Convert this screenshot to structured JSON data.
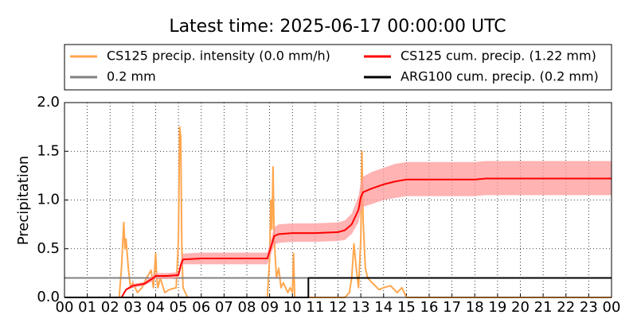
{
  "chart_data": {
    "type": "line",
    "title": "Latest time: 2025-06-17 00:00:00 UTC",
    "y_label": "Precipitation",
    "xlim": [
      0,
      24
    ],
    "xticks": [
      {
        "value": 0,
        "label": "00"
      },
      {
        "value": 1,
        "label": "01"
      },
      {
        "value": 2,
        "label": "02"
      },
      {
        "value": 3,
        "label": "03"
      },
      {
        "value": 4,
        "label": "04"
      },
      {
        "value": 5,
        "label": "05"
      },
      {
        "value": 6,
        "label": "06"
      },
      {
        "value": 7,
        "label": "07"
      },
      {
        "value": 8,
        "label": "08"
      },
      {
        "value": 9,
        "label": "09"
      },
      {
        "value": 10,
        "label": "10"
      },
      {
        "value": 11,
        "label": "11"
      },
      {
        "value": 12,
        "label": "12"
      },
      {
        "value": 13,
        "label": "13"
      },
      {
        "value": 14,
        "label": "14"
      },
      {
        "value": 15,
        "label": "15"
      },
      {
        "value": 16,
        "label": "16"
      },
      {
        "value": 17,
        "label": "17"
      },
      {
        "value": 18,
        "label": "18"
      },
      {
        "value": 19,
        "label": "19"
      },
      {
        "value": 20,
        "label": "20"
      },
      {
        "value": 21,
        "label": "21"
      },
      {
        "value": 22,
        "label": "22"
      },
      {
        "value": 23,
        "label": "23"
      },
      {
        "value": 24,
        "label": "00"
      }
    ],
    "ylim": [
      0,
      2
    ],
    "yticks": [
      {
        "value": 0,
        "label": "0.0"
      },
      0.5,
      {
        "value": 1,
        "label": "1.0"
      },
      1.5,
      {
        "value": 2,
        "label": "2.0"
      }
    ],
    "grid": true,
    "series": [
      {
        "name": "CS125 precip. intensity (0.0 mm/h)",
        "color": "#ffa64d",
        "x": [
          0,
          2.4,
          2.5,
          2.6,
          2.65,
          2.7,
          2.8,
          2.9,
          3.0,
          3.2,
          3.4,
          3.6,
          3.8,
          3.9,
          4.0,
          4.05,
          4.1,
          4.2,
          4.4,
          4.6,
          4.9,
          5.0,
          5.05,
          5.1,
          5.15,
          5.2,
          5.4,
          8.9,
          9.0,
          9.05,
          9.1,
          9.15,
          9.2,
          9.3,
          9.4,
          9.5,
          9.6,
          9.7,
          9.8,
          9.9,
          10.0,
          10.05,
          10.1,
          10.15,
          10.3,
          12.3,
          12.5,
          12.6,
          12.7,
          12.8,
          12.9,
          13.0,
          13.05,
          13.1,
          13.2,
          13.3,
          13.5,
          13.8,
          14.0,
          14.3,
          14.6,
          14.8,
          15.0,
          24
        ],
        "values": [
          0,
          0,
          0.3,
          0.77,
          0.5,
          0.6,
          0.3,
          0.1,
          0.15,
          0.05,
          0.1,
          0.2,
          0.28,
          0.1,
          0.45,
          0.2,
          0.1,
          0.2,
          0.05,
          0.08,
          0.1,
          0.6,
          1.75,
          1.65,
          0.5,
          0.1,
          0,
          0,
          0.4,
          1.0,
          0.7,
          1.34,
          0.6,
          0.2,
          0.3,
          0.1,
          0.15,
          0.1,
          0.05,
          0.1,
          0.05,
          0.45,
          0,
          0,
          0,
          0,
          0.05,
          0.2,
          0.55,
          0.3,
          0.1,
          0.6,
          1.5,
          0.8,
          0.3,
          0.2,
          0.15,
          0.08,
          0.1,
          0.12,
          0.05,
          0.1,
          0,
          0
        ]
      },
      {
        "name": "0.2 mm",
        "color": "#808080",
        "x": [
          0,
          24
        ],
        "values": [
          0.2,
          0.2
        ]
      },
      {
        "name": "CS125 cum. precip. (1.22 mm)",
        "color": "#ff0000",
        "band_color": "#ff9999",
        "x": [
          0,
          2.5,
          2.7,
          3.0,
          3.5,
          3.9,
          4.0,
          4.5,
          5.0,
          5.1,
          5.2,
          6,
          8.9,
          9.1,
          9.2,
          9.4,
          10,
          11,
          12,
          12.3,
          12.6,
          12.9,
          13.0,
          13.1,
          13.5,
          14,
          14.5,
          15,
          18,
          18.5,
          24
        ],
        "values": [
          0,
          0,
          0.08,
          0.12,
          0.14,
          0.2,
          0.22,
          0.22,
          0.23,
          0.33,
          0.39,
          0.4,
          0.4,
          0.55,
          0.63,
          0.65,
          0.66,
          0.66,
          0.67,
          0.69,
          0.75,
          0.9,
          1.03,
          1.08,
          1.12,
          1.16,
          1.19,
          1.21,
          1.21,
          1.22,
          1.22
        ],
        "upper": [
          0,
          0,
          0.09,
          0.14,
          0.16,
          0.23,
          0.25,
          0.25,
          0.26,
          0.38,
          0.45,
          0.46,
          0.46,
          0.63,
          0.72,
          0.75,
          0.76,
          0.76,
          0.77,
          0.79,
          0.86,
          1.04,
          1.18,
          1.24,
          1.29,
          1.33,
          1.37,
          1.39,
          1.39,
          1.4,
          1.4
        ],
        "lower": [
          0,
          0,
          0.07,
          0.1,
          0.12,
          0.17,
          0.19,
          0.19,
          0.2,
          0.28,
          0.34,
          0.34,
          0.34,
          0.47,
          0.54,
          0.56,
          0.57,
          0.57,
          0.58,
          0.59,
          0.65,
          0.77,
          0.89,
          0.93,
          0.96,
          1.0,
          1.02,
          1.04,
          1.04,
          1.05,
          1.05
        ]
      },
      {
        "name": "ARG100 cum. precip. (0.2 mm)",
        "color": "#000000",
        "x": [
          0,
          10.7,
          10.7,
          24
        ],
        "values": [
          0,
          0,
          0.2,
          0.2
        ]
      }
    ]
  }
}
